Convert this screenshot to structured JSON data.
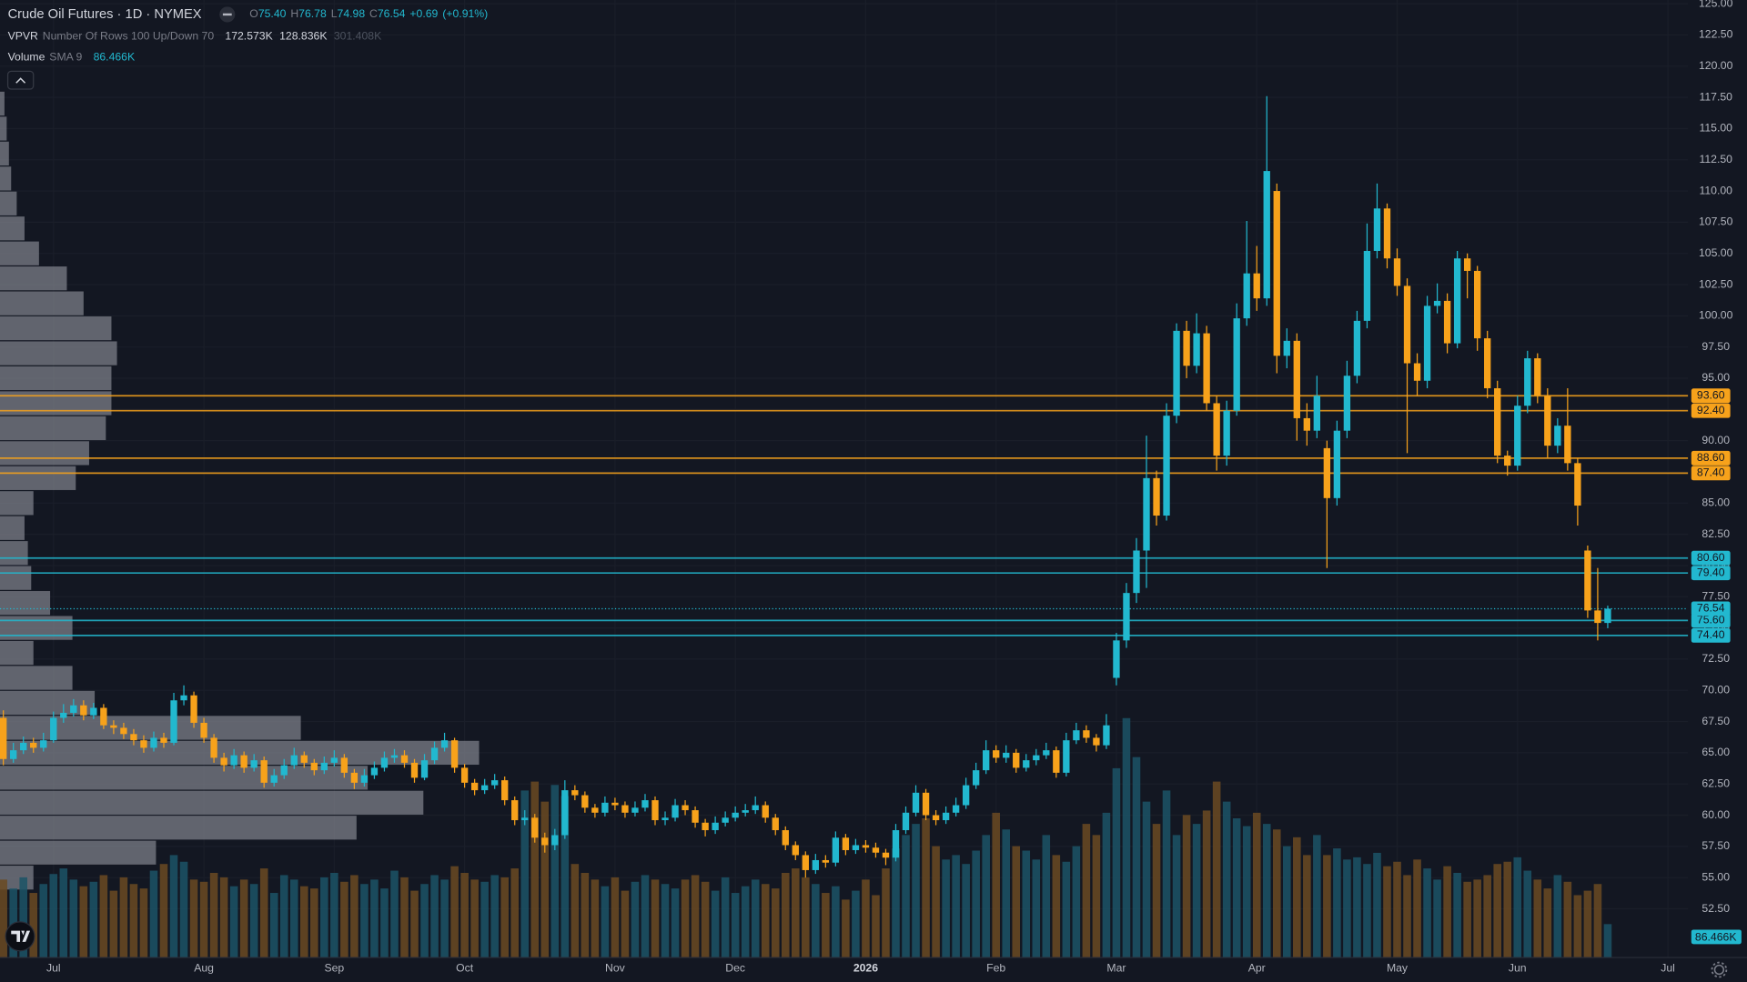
{
  "chart_data": {
    "type": "candlestick",
    "title": "Crude Oil Futures · 1D · NYMEX",
    "ohlc_keys": [
      "O",
      "H",
      "L",
      "C"
    ],
    "ohlc_values": [
      {
        "value": 75.4,
        "label": "75.40"
      },
      76.78,
      74.98,
      76.54
    ],
    "change": {
      "value": 0.69,
      "label": "+0.69"
    },
    "change_pct": {
      "value": 0.91,
      "label": "(+0.91%)"
    },
    "vpvr": {
      "name": "VPVR",
      "params": "Number Of Rows 100 Up/Down 70",
      "up": {
        "value": 172.573,
        "label": "172.573K"
      },
      "down": {
        "value": 128.836,
        "label": "128.836K"
      },
      "total": {
        "value": 301.408,
        "label": "301.408K"
      }
    },
    "volume_indicator": {
      "name": "Volume",
      "params": "SMA 9",
      "sma": {
        "value": 86.466,
        "label": "86.466K"
      }
    },
    "up_color": "#22b8cf",
    "down_color": "#f7a21b",
    "volume_up_color": "#1c5466",
    "volume_down_color": "#6b4a22",
    "profile_color": "#7c7f88",
    "grid": true,
    "ylim": [
      48.6,
      125.3
    ],
    "yticks": [
      {
        "value": 52.5,
        "label": "52.50"
      },
      {
        "value": 55,
        "label": "55.00"
      },
      {
        "value": 57.5,
        "label": "57.50"
      },
      {
        "value": 60,
        "label": "60.00"
      },
      {
        "value": 62.5,
        "label": "62.50"
      },
      {
        "value": 65,
        "label": "65.00"
      },
      {
        "value": 67.5,
        "label": "67.50"
      },
      {
        "value": 70,
        "label": "70.00"
      },
      {
        "value": 72.5,
        "label": "72.50"
      },
      {
        "value": 75,
        "label": "75.00"
      },
      {
        "value": 77.5,
        "label": "77.50"
      },
      {
        "value": 80,
        "label": "80.00"
      },
      {
        "value": 82.5,
        "label": "82.50"
      },
      {
        "value": 85,
        "label": "85.00"
      },
      {
        "value": 87.5,
        "label": "87.50"
      },
      {
        "value": 90,
        "label": "90.00"
      },
      {
        "value": 92.5,
        "label": "92.50"
      },
      {
        "value": 95,
        "label": "95.00"
      },
      {
        "value": 97.5,
        "label": "97.50"
      },
      {
        "value": 100,
        "label": "100.00"
      },
      {
        "value": 102.5,
        "label": "102.50"
      },
      {
        "value": 105,
        "label": "105.00"
      },
      {
        "value": 107.5,
        "label": "107.50"
      },
      {
        "value": 110,
        "label": "110.00"
      },
      {
        "value": 112.5,
        "label": "112.50"
      },
      {
        "value": 115,
        "label": "115.00"
      },
      {
        "value": 117.5,
        "label": "117.50"
      },
      {
        "value": 120,
        "label": "120.00"
      },
      {
        "value": 122.5,
        "label": "122.50"
      },
      {
        "value": 125,
        "label": "125.00"
      }
    ],
    "price_lines": [
      {
        "value": 93.6,
        "label": "93.60",
        "color": "#f7a21b"
      },
      {
        "value": 92.4,
        "label": "92.40",
        "color": "#f7a21b"
      },
      {
        "value": 88.6,
        "label": "88.60",
        "color": "#f7a21b"
      },
      {
        "value": 87.4,
        "label": "87.40",
        "color": "#f7a21b"
      },
      {
        "value": 80.6,
        "label": "80.60",
        "color": "#22b8cf"
      },
      {
        "value": 79.4,
        "label": "79.40",
        "color": "#22b8cf"
      },
      {
        "value": 75.6,
        "label": "75.60",
        "color": "#22b8cf"
      },
      {
        "value": 74.4,
        "label": "74.40",
        "color": "#22b8cf"
      }
    ],
    "last_price": {
      "value": 76.54,
      "label": "76.54"
    },
    "volume_lim": [
      0,
      300
    ],
    "profile": {
      "bins": [
        54,
        56,
        58,
        60,
        62,
        64,
        66,
        68,
        70,
        72,
        74,
        76,
        78,
        80,
        82,
        84,
        86,
        88,
        90,
        92,
        94,
        96,
        98,
        100,
        102,
        104,
        106,
        108,
        110,
        112,
        114,
        116,
        118
      ],
      "values": [
        3,
        14,
        32,
        38,
        33,
        43,
        27,
        8.5,
        6.5,
        3,
        6.5,
        4.5,
        2.8,
        2.5,
        2.2,
        3,
        6.8,
        8,
        9.5,
        10,
        10,
        10.5,
        10,
        7.5,
        6,
        3.5,
        2.2,
        1.5,
        1,
        0.8,
        0.6,
        0.4
      ],
      "xlim": [
        0,
        43
      ]
    },
    "categories": [
      null,
      null,
      null,
      null,
      null,
      "Jul",
      null,
      null,
      null,
      null,
      null,
      null,
      null,
      null,
      null,
      null,
      null,
      null,
      null,
      null,
      "Aug",
      null,
      null,
      null,
      null,
      null,
      null,
      null,
      null,
      null,
      null,
      null,
      null,
      "Sep",
      null,
      null,
      null,
      null,
      null,
      null,
      null,
      null,
      null,
      null,
      null,
      null,
      "Oct",
      null,
      null,
      null,
      null,
      null,
      null,
      null,
      null,
      null,
      null,
      null,
      null,
      null,
      null,
      "Nov",
      null,
      null,
      null,
      null,
      null,
      null,
      null,
      null,
      null,
      null,
      null,
      "Dec",
      null,
      null,
      null,
      null,
      null,
      null,
      null,
      null,
      null,
      null,
      null,
      null,
      "2026",
      null,
      null,
      null,
      null,
      null,
      null,
      null,
      null,
      null,
      null,
      null,
      null,
      "Feb",
      null,
      null,
      null,
      null,
      null,
      null,
      null,
      null,
      null,
      null,
      null,
      "Mar",
      null,
      null,
      null,
      null,
      null,
      null,
      null,
      null,
      null,
      null,
      null,
      null,
      null,
      "Apr",
      null,
      null,
      null,
      null,
      null,
      null,
      null,
      null,
      null,
      null,
      null,
      null,
      null,
      "May",
      null,
      null,
      null,
      null,
      null,
      null,
      null,
      null,
      null,
      null,
      null,
      "Jun",
      null,
      null,
      null,
      null,
      null,
      null,
      null,
      null,
      null,
      null,
      null,
      null,
      null,
      null,
      "Jul"
    ],
    "open": [
      67.8,
      64.5,
      65.2,
      65.8,
      65.4,
      66.0,
      67.8,
      68.2,
      68.8,
      68.0,
      68.6,
      67.2,
      67.0,
      66.5,
      66.0,
      65.4,
      66.2,
      65.8,
      69.2,
      69.6,
      67.4,
      66.2,
      64.6,
      64.0,
      64.8,
      63.8,
      64.4,
      62.6,
      63.2,
      64.0,
      64.8,
      64.2,
      63.6,
      64.2,
      64.6,
      63.4,
      62.6,
      63.2,
      63.8,
      64.6,
      64.8,
      64.2,
      63.0,
      64.4,
      65.4,
      66.0,
      63.8,
      62.6,
      62.0,
      62.4,
      62.8,
      61.2,
      59.6,
      59.8,
      58.2,
      57.6,
      58.4,
      62.0,
      61.6,
      60.6,
      60.2,
      61.0,
      60.8,
      60.2,
      60.6,
      61.2,
      59.6,
      59.8,
      60.8,
      60.4,
      59.4,
      58.8,
      59.4,
      59.8,
      60.2,
      60.4,
      60.8,
      59.8,
      58.8,
      57.6,
      56.8,
      55.6,
      56.4,
      56.2,
      58.2,
      57.2,
      57.6,
      57.4,
      57.0,
      56.6,
      58.8,
      60.2,
      61.8,
      60.0,
      59.6,
      60.2,
      60.8,
      62.4,
      63.6,
      65.2,
      64.6,
      65.0,
      63.8,
      64.4,
      64.8,
      65.2,
      63.4,
      66.0,
      66.8,
      66.2,
      65.6,
      71.0,
      74.0,
      77.8,
      81.2,
      87.0,
      84.0,
      92.0,
      98.8,
      96.0,
      98.6,
      93.0,
      88.8,
      92.4,
      99.8,
      103.4,
      101.4,
      110.0,
      96.8,
      98.0,
      91.8,
      90.8,
      89.4,
      85.4,
      90.8,
      95.2,
      99.6,
      105.2,
      108.6,
      104.6,
      102.4,
      96.2,
      94.8,
      100.8,
      101.2,
      97.8,
      104.6,
      103.6,
      98.2,
      94.2,
      88.8,
      88.0,
      92.8,
      96.6,
      93.6,
      89.6,
      91.2,
      88.2,
      81.2,
      76.4,
      75.4,
      null,
      null,
      null,
      null,
      null,
      null
    ],
    "high": [
      68.4,
      65.8,
      66.3,
      66.2,
      66.6,
      68.3,
      68.9,
      69.3,
      69.2,
      69.0,
      68.9,
      67.6,
      67.4,
      66.9,
      66.4,
      66.7,
      66.6,
      69.8,
      70.4,
      69.9,
      67.8,
      66.5,
      65.0,
      65.3,
      65.1,
      64.9,
      64.7,
      63.7,
      64.5,
      65.4,
      65.1,
      64.5,
      64.7,
      65.2,
      64.9,
      63.7,
      63.7,
      64.3,
      65.1,
      65.3,
      65.2,
      64.5,
      64.9,
      65.9,
      66.6,
      66.2,
      64.1,
      62.9,
      62.9,
      63.3,
      63.1,
      61.5,
      60.4,
      60.1,
      58.6,
      58.9,
      62.8,
      62.4,
      61.9,
      60.9,
      61.5,
      61.4,
      61.1,
      61.1,
      61.7,
      61.5,
      60.3,
      61.3,
      61.2,
      60.7,
      59.7,
      59.9,
      60.3,
      60.7,
      60.9,
      61.5,
      61.1,
      60.1,
      59.1,
      57.9,
      57.1,
      56.9,
      56.8,
      58.7,
      58.5,
      58.1,
      58.0,
      57.8,
      57.3,
      59.3,
      60.7,
      62.4,
      62.1,
      60.4,
      60.7,
      61.4,
      63.0,
      64.2,
      66.0,
      65.6,
      65.6,
      65.3,
      64.9,
      65.3,
      65.8,
      65.5,
      66.6,
      67.4,
      67.2,
      66.5,
      68.1,
      74.6,
      78.6,
      82.2,
      90.4,
      87.6,
      93.0,
      99.4,
      99.6,
      100.2,
      99.2,
      93.6,
      93.2,
      101.0,
      107.6,
      105.6,
      117.6,
      110.6,
      99.0,
      98.6,
      93.0,
      95.2,
      90.0,
      91.6,
      96.4,
      100.4,
      107.4,
      110.6,
      109.0,
      105.4,
      103.0,
      97.0,
      101.6,
      102.6,
      101.8,
      105.2,
      105.0,
      104.0,
      98.8,
      94.8,
      89.2,
      93.6,
      97.2,
      97.0,
      94.2,
      91.8,
      94.2,
      88.6,
      81.6,
      79.8,
      76.78,
      null,
      null,
      null,
      null,
      null,
      null
    ],
    "low": [
      64.0,
      64.2,
      64.9,
      65.0,
      65.1,
      65.8,
      67.4,
      67.9,
      67.6,
      67.7,
      66.9,
      66.5,
      66.1,
      65.6,
      65.0,
      65.1,
      65.4,
      65.6,
      68.8,
      67.0,
      65.8,
      64.2,
      63.5,
      63.7,
      63.4,
      63.5,
      62.2,
      62.3,
      62.9,
      63.7,
      63.8,
      63.2,
      63.3,
      63.9,
      63.0,
      62.1,
      62.3,
      62.9,
      63.5,
      64.2,
      63.8,
      62.6,
      62.8,
      64.1,
      65.1,
      63.4,
      62.2,
      61.6,
      61.7,
      62.1,
      60.8,
      59.2,
      59.2,
      57.8,
      57.0,
      57.2,
      58.1,
      61.2,
      60.2,
      59.8,
      59.9,
      60.4,
      59.8,
      59.9,
      60.3,
      59.2,
      59.2,
      59.5,
      60.0,
      59.0,
      58.3,
      58.5,
      59.1,
      59.5,
      59.9,
      60.1,
      59.4,
      58.4,
      57.2,
      56.4,
      55.0,
      55.3,
      55.8,
      55.9,
      56.8,
      56.9,
      57.0,
      56.6,
      56.0,
      56.3,
      58.5,
      59.9,
      59.6,
      59.2,
      59.3,
      59.9,
      60.5,
      62.1,
      63.3,
      64.2,
      64.2,
      63.4,
      63.5,
      64.0,
      64.5,
      63.0,
      63.1,
      65.7,
      65.8,
      65.1,
      65.3,
      70.4,
      73.4,
      77.0,
      78.2,
      83.2,
      83.6,
      91.4,
      95.0,
      95.4,
      92.4,
      87.6,
      88.0,
      92.0,
      99.2,
      100.4,
      100.8,
      95.4,
      95.8,
      90.0,
      89.6,
      90.2,
      79.8,
      84.8,
      90.2,
      94.6,
      99.0,
      104.6,
      103.8,
      101.6,
      89.0,
      93.6,
      94.2,
      100.2,
      97.0,
      97.4,
      101.4,
      97.2,
      93.4,
      88.2,
      87.2,
      87.6,
      92.2,
      93.0,
      88.6,
      89.0,
      87.6,
      83.2,
      75.8,
      74.0,
      74.98,
      null,
      null,
      null,
      null,
      null,
      null
    ],
    "close": [
      64.5,
      65.2,
      65.8,
      65.4,
      66.0,
      67.8,
      68.2,
      68.8,
      68.0,
      68.6,
      67.2,
      67.0,
      66.5,
      66.0,
      65.4,
      66.2,
      65.8,
      69.2,
      69.6,
      67.4,
      66.2,
      64.6,
      64.0,
      64.8,
      63.8,
      64.4,
      62.6,
      63.2,
      64.0,
      64.8,
      64.2,
      63.6,
      64.2,
      64.6,
      63.4,
      62.6,
      63.2,
      63.8,
      64.6,
      64.8,
      64.2,
      63.0,
      64.4,
      65.4,
      66.0,
      63.8,
      62.6,
      62.0,
      62.4,
      62.8,
      61.2,
      59.6,
      59.8,
      58.2,
      57.6,
      58.4,
      62.0,
      61.6,
      60.6,
      60.2,
      61.0,
      60.8,
      60.2,
      60.6,
      61.2,
      59.6,
      59.8,
      60.8,
      60.4,
      59.4,
      58.8,
      59.4,
      59.8,
      60.2,
      60.4,
      60.8,
      59.8,
      58.8,
      57.6,
      56.8,
      55.6,
      56.4,
      56.2,
      58.2,
      57.2,
      57.6,
      57.4,
      57.0,
      56.6,
      58.8,
      60.2,
      61.8,
      60.0,
      59.6,
      60.2,
      60.8,
      62.4,
      63.6,
      65.2,
      64.6,
      65.0,
      63.8,
      64.4,
      64.8,
      65.2,
      63.4,
      66.0,
      66.8,
      66.2,
      65.6,
      67.2,
      74.0,
      77.8,
      81.2,
      87.0,
      84.0,
      92.0,
      98.8,
      96.0,
      98.6,
      93.0,
      88.8,
      92.4,
      99.8,
      103.4,
      101.4,
      111.6,
      96.8,
      98.0,
      91.8,
      90.8,
      93.6,
      85.4,
      90.8,
      95.2,
      99.6,
      105.2,
      108.6,
      104.6,
      102.4,
      96.2,
      94.8,
      100.8,
      101.2,
      97.8,
      104.6,
      103.6,
      98.2,
      94.2,
      88.8,
      88.0,
      92.8,
      96.6,
      93.6,
      89.6,
      91.2,
      88.2,
      84.8,
      76.4,
      75.4,
      76.54,
      null,
      null,
      null,
      null,
      null,
      null
    ],
    "volume": [
      70,
      62,
      72,
      58,
      66,
      75,
      80,
      70,
      64,
      68,
      74,
      60,
      72,
      66,
      62,
      78,
      84,
      92,
      86,
      70,
      68,
      76,
      72,
      64,
      70,
      66,
      80,
      58,
      74,
      70,
      64,
      62,
      72,
      76,
      68,
      74,
      66,
      70,
      62,
      78,
      72,
      60,
      66,
      74,
      70,
      82,
      76,
      70,
      68,
      74,
      72,
      80,
      150,
      158,
      140,
      155,
      145,
      84,
      76,
      70,
      64,
      72,
      60,
      68,
      74,
      70,
      66,
      62,
      70,
      74,
      68,
      60,
      72,
      58,
      64,
      70,
      66,
      62,
      76,
      80,
      72,
      66,
      58,
      64,
      52,
      60,
      70,
      56,
      80,
      98,
      110,
      120,
      125,
      100,
      88,
      92,
      84,
      96,
      110,
      130,
      115,
      100,
      96,
      88,
      110,
      92,
      86,
      100,
      120,
      110,
      130,
      170,
      215,
      180,
      140,
      120,
      150,
      110,
      128,
      120,
      132,
      158,
      140,
      125,
      118,
      130,
      120,
      115,
      100,
      108,
      92,
      110,
      92,
      98,
      88,
      90,
      84,
      94,
      82,
      86,
      74,
      88,
      80,
      70,
      82,
      76,
      68,
      70,
      74,
      84,
      86,
      90,
      78,
      70,
      62,
      74,
      68,
      56,
      60,
      66,
      30,
      null,
      null,
      null,
      null,
      null,
      null
    ]
  }
}
